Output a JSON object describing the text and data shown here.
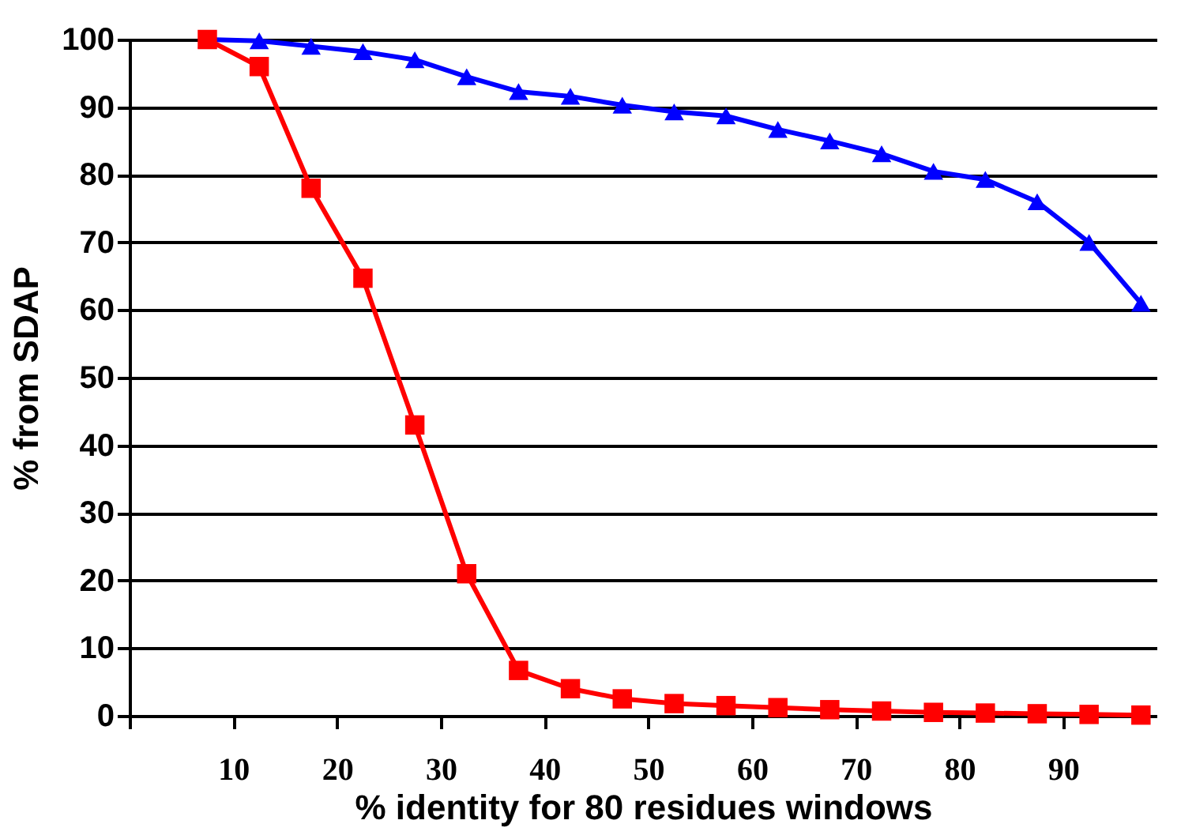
{
  "chart_data": {
    "type": "line",
    "xlabel": "% identity for 80 residues windows",
    "ylabel": "% from SDAP",
    "x": [
      7.5,
      12.5,
      17.5,
      22.5,
      27.5,
      32.5,
      37.5,
      42.5,
      47.5,
      52.5,
      57.5,
      62.5,
      67.5,
      72.5,
      77.5,
      82.5,
      87.5,
      92.5,
      97.5
    ],
    "series": [
      {
        "color": "#0000ff",
        "marker": "triangle",
        "values": [
          100,
          99.8,
          99,
          98.2,
          97,
          94.5,
          92.3,
          91.6,
          90.3,
          89.3,
          88.7,
          86.7,
          85,
          83.1,
          80.5,
          79.3,
          76,
          70,
          61
        ]
      },
      {
        "color": "#ff0000",
        "marker": "square",
        "values": [
          100,
          96,
          78,
          64.7,
          43,
          21,
          6.7,
          4,
          2.5,
          1.8,
          1.5,
          1.2,
          0.9,
          0.7,
          0.5,
          0.4,
          0.3,
          0.2,
          0.1
        ]
      }
    ],
    "xlim": [
      0,
      99
    ],
    "xticks": [
      {
        "value": 0,
        "label": null
      },
      10,
      20,
      30,
      40,
      50,
      60,
      70,
      80,
      90
    ],
    "ylim": [
      0,
      100
    ],
    "yticks": [
      0,
      10,
      20,
      30,
      40,
      50,
      60,
      70,
      80,
      90,
      100
    ],
    "grid": "y"
  }
}
